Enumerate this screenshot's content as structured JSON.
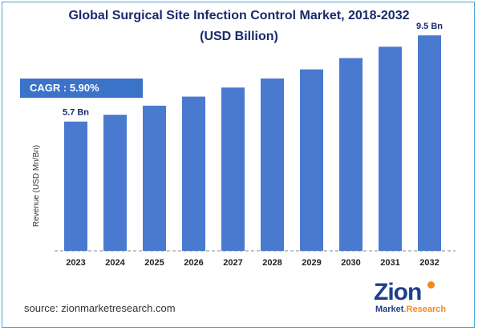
{
  "header": {
    "title_line1": "Global Surgical Site Infection Control Market, 2018-2032",
    "title_line2": "(USD Billion)"
  },
  "cagr": {
    "label": "CAGR : 5.90%"
  },
  "source": {
    "text": "source: zionmarketresearch.com"
  },
  "logo": {
    "brand": "Zion",
    "sub_1": "Market",
    "sub_2": ".Research"
  },
  "colors": {
    "bar": "#4a79d0",
    "title": "#1a2a6c",
    "cagr_bg": "#3b73c8",
    "axis": "#888888"
  },
  "chart_data": {
    "type": "bar",
    "title": "Global Surgical Site Infection Control Market, 2018-2032",
    "subtitle": "(USD Billion)",
    "xlabel": "",
    "ylabel": "Revenue (USD Mn/Bn)",
    "categories": [
      "2023",
      "2024",
      "2025",
      "2026",
      "2027",
      "2028",
      "2029",
      "2030",
      "2031",
      "2032"
    ],
    "values": [
      5.7,
      6.0,
      6.4,
      6.8,
      7.2,
      7.6,
      8.0,
      8.5,
      9.0,
      9.5
    ],
    "data_labels": {
      "0": "5.7 Bn",
      "9": "9.5 Bn"
    },
    "ylim": [
      0,
      10
    ],
    "grid": false,
    "legend": "none"
  }
}
